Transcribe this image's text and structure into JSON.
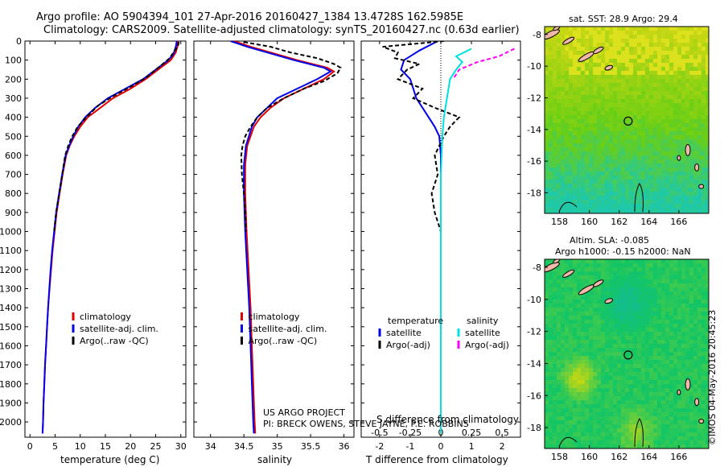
{
  "header": {
    "line1": "Argo profile: AO 5904394_101 27-Apr-2016 20160427_1384 13.4728S 162.5985E",
    "line2": "Climatology: CARS2009. Satellite-adjusted climatology: synTS_20160427.nc (0.63d earlier)"
  },
  "footer": {
    "project": "US ARGO PROJECT",
    "pi": "PI: BRECK OWENS, STEVE JAYNE, P.E. ROBBINS"
  },
  "side_stamp": "©IMOS 04-May-2016 20:45:23",
  "colors": {
    "climatology": "#e00000",
    "satellite": "#0000ee",
    "argo": "#000000",
    "sal_satellite": "#00e0e0",
    "sal_argo": "#ff00ff"
  },
  "chart_data": [
    {
      "type": "line",
      "panel": "temperature",
      "xlabel": "temperature (deg C)",
      "ylabel": "",
      "xlim": [
        -1,
        31
      ],
      "ylim": [
        2080,
        0
      ],
      "xticks": [
        0,
        5,
        10,
        15,
        20,
        25,
        30
      ],
      "yticks": [
        0,
        100,
        200,
        300,
        400,
        500,
        600,
        700,
        800,
        900,
        1000,
        1100,
        1200,
        1300,
        1400,
        1500,
        1600,
        1700,
        1800,
        1900,
        2000
      ],
      "legend": [
        "climatology",
        "satellite-adj. clim.",
        "Argo(..raw -QC)"
      ],
      "legend_position": "lower-center",
      "series": [
        {
          "name": "climatology",
          "style": "solid",
          "points": [
            [
              29.5,
              0
            ],
            [
              29.3,
              30
            ],
            [
              29.0,
              60
            ],
            [
              28.0,
              100
            ],
            [
              25.5,
              150
            ],
            [
              23.0,
              200
            ],
            [
              20.0,
              250
            ],
            [
              16.5,
              300
            ],
            [
              14.0,
              350
            ],
            [
              11.5,
              400
            ],
            [
              10.0,
              450
            ],
            [
              8.8,
              500
            ],
            [
              7.9,
              550
            ],
            [
              7.2,
              600
            ],
            [
              6.5,
              700
            ],
            [
              5.9,
              800
            ],
            [
              5.3,
              900
            ],
            [
              4.9,
              1000
            ],
            [
              4.5,
              1100
            ],
            [
              4.2,
              1200
            ],
            [
              3.9,
              1300
            ],
            [
              3.6,
              1400
            ],
            [
              3.4,
              1500
            ],
            [
              3.2,
              1600
            ],
            [
              3.0,
              1700
            ],
            [
              2.85,
              1800
            ],
            [
              2.7,
              1900
            ],
            [
              2.6,
              2000
            ],
            [
              2.5,
              2060
            ]
          ]
        },
        {
          "name": "satellite-adj. clim.",
          "style": "solid",
          "points": [
            [
              29.2,
              0
            ],
            [
              29.0,
              30
            ],
            [
              28.5,
              70
            ],
            [
              27.5,
              100
            ],
            [
              25.0,
              150
            ],
            [
              22.5,
              200
            ],
            [
              19.0,
              250
            ],
            [
              15.5,
              300
            ],
            [
              13.0,
              350
            ],
            [
              11.0,
              400
            ],
            [
              9.6,
              450
            ],
            [
              8.6,
              500
            ],
            [
              7.8,
              550
            ],
            [
              7.1,
              600
            ],
            [
              6.4,
              700
            ],
            [
              5.8,
              800
            ],
            [
              5.2,
              900
            ],
            [
              4.8,
              1000
            ],
            [
              4.4,
              1100
            ],
            [
              4.1,
              1200
            ],
            [
              3.85,
              1300
            ],
            [
              3.6,
              1400
            ],
            [
              3.4,
              1500
            ],
            [
              3.2,
              1600
            ],
            [
              3.0,
              1700
            ],
            [
              2.85,
              1800
            ],
            [
              2.7,
              1900
            ],
            [
              2.6,
              2000
            ],
            [
              2.5,
              2060
            ]
          ]
        },
        {
          "name": "Argo(..raw -QC)",
          "style": "dashed",
          "points": [
            [
              29.6,
              5
            ],
            [
              29.4,
              30
            ],
            [
              28.5,
              60
            ],
            [
              27.8,
              90
            ],
            [
              25.5,
              140
            ],
            [
              23.2,
              190
            ],
            [
              20.0,
              240
            ],
            [
              16.5,
              290
            ],
            [
              13.5,
              340
            ],
            [
              11.2,
              400
            ],
            [
              9.5,
              450
            ],
            [
              8.4,
              500
            ],
            [
              7.6,
              550
            ],
            [
              7.0,
              600
            ],
            [
              6.4,
              700
            ],
            [
              5.8,
              800
            ],
            [
              5.2,
              900
            ],
            [
              4.8,
              1000
            ]
          ]
        }
      ]
    },
    {
      "type": "line",
      "panel": "salinity",
      "xlabel": "salinity",
      "xlim": [
        33.75,
        36.15
      ],
      "ylim": [
        2080,
        0
      ],
      "xticks": [
        34,
        34.5,
        35,
        35.5,
        36
      ],
      "legend": [
        "climatology",
        "satellite-adj. clim.",
        "Argo(..raw -QC)"
      ],
      "legend_position": "lower-center",
      "series": [
        {
          "name": "climatology",
          "style": "solid",
          "points": [
            [
              34.35,
              0
            ],
            [
              34.6,
              30
            ],
            [
              34.9,
              60
            ],
            [
              35.3,
              100
            ],
            [
              35.75,
              140
            ],
            [
              35.85,
              160
            ],
            [
              35.7,
              200
            ],
            [
              35.4,
              250
            ],
            [
              35.1,
              300
            ],
            [
              34.9,
              350
            ],
            [
              34.75,
              400
            ],
            [
              34.65,
              450
            ],
            [
              34.55,
              550
            ],
            [
              34.52,
              650
            ],
            [
              34.52,
              800
            ],
            [
              34.54,
              1000
            ],
            [
              34.57,
              1200
            ],
            [
              34.6,
              1400
            ],
            [
              34.62,
              1600
            ],
            [
              34.64,
              1800
            ],
            [
              34.66,
              2000
            ],
            [
              34.67,
              2060
            ]
          ]
        },
        {
          "name": "satellite-adj. clim.",
          "style": "solid",
          "points": [
            [
              34.3,
              0
            ],
            [
              34.55,
              30
            ],
            [
              34.85,
              60
            ],
            [
              35.25,
              100
            ],
            [
              35.7,
              140
            ],
            [
              35.8,
              160
            ],
            [
              35.6,
              200
            ],
            [
              35.3,
              250
            ],
            [
              35.0,
              300
            ],
            [
              34.85,
              350
            ],
            [
              34.7,
              400
            ],
            [
              34.62,
              450
            ],
            [
              34.53,
              550
            ],
            [
              34.5,
              650
            ],
            [
              34.5,
              800
            ],
            [
              34.52,
              1000
            ],
            [
              34.55,
              1200
            ],
            [
              34.58,
              1400
            ],
            [
              34.6,
              1600
            ],
            [
              34.62,
              1800
            ],
            [
              34.64,
              2000
            ],
            [
              34.65,
              2060
            ]
          ]
        },
        {
          "name": "Argo(..raw -QC)",
          "style": "dashed",
          "points": [
            [
              34.5,
              5
            ],
            [
              34.9,
              30
            ],
            [
              35.2,
              60
            ],
            [
              35.6,
              90
            ],
            [
              35.85,
              120
            ],
            [
              35.95,
              140
            ],
            [
              35.9,
              170
            ],
            [
              35.7,
              210
            ],
            [
              35.4,
              250
            ],
            [
              35.1,
              300
            ],
            [
              34.85,
              350
            ],
            [
              34.7,
              400
            ],
            [
              34.6,
              450
            ],
            [
              34.52,
              500
            ],
            [
              34.48,
              550
            ],
            [
              34.46,
              600
            ],
            [
              34.47,
              700
            ],
            [
              34.5,
              800
            ],
            [
              34.52,
              900
            ],
            [
              34.53,
              1000
            ]
          ]
        }
      ]
    },
    {
      "type": "line",
      "panel": "difference",
      "xlabel": "T difference from climatology",
      "top_axis_label": "S difference from climatology",
      "xlim": [
        -2.6,
        2.6
      ],
      "ylim": [
        2080,
        0
      ],
      "xticks": [
        -2,
        -1,
        0,
        1,
        2
      ],
      "top_xticks": [
        "-0.5",
        "-0.25",
        "0",
        "0.25",
        "0.5"
      ],
      "legend_groups": [
        {
          "title": "temperature",
          "items": [
            "satellite",
            "Argo(-adj)"
          ]
        },
        {
          "title": "salinity",
          "items": [
            "satellite",
            "Argo(-adj)"
          ]
        }
      ],
      "series": [
        {
          "name": "satellite",
          "group": "temperature",
          "style": "solid",
          "points": [
            [
              -0.1,
              0
            ],
            [
              -0.7,
              50
            ],
            [
              -1.2,
              100
            ],
            [
              -1.3,
              150
            ],
            [
              -1.0,
              200
            ],
            [
              -0.9,
              250
            ],
            [
              -0.8,
              300
            ],
            [
              -0.6,
              350
            ],
            [
              -0.4,
              400
            ],
            [
              -0.2,
              450
            ],
            [
              -0.05,
              500
            ],
            [
              0,
              600
            ],
            [
              0,
              2060
            ]
          ]
        },
        {
          "name": "Argo(-adj)",
          "group": "temperature",
          "style": "dashed",
          "points": [
            [
              0.1,
              0
            ],
            [
              -1.9,
              30
            ],
            [
              -1.4,
              60
            ],
            [
              -1.5,
              90
            ],
            [
              -0.7,
              120
            ],
            [
              -1.1,
              150
            ],
            [
              -1.4,
              200
            ],
            [
              -0.6,
              250
            ],
            [
              -0.9,
              300
            ],
            [
              -0.2,
              350
            ],
            [
              0.6,
              400
            ],
            [
              0.3,
              450
            ],
            [
              0.1,
              500
            ],
            [
              -0.2,
              600
            ],
            [
              -0.1,
              700
            ],
            [
              -0.3,
              800
            ],
            [
              -0.2,
              900
            ],
            [
              0,
              1000
            ]
          ]
        },
        {
          "name": "satellite",
          "group": "salinity",
          "style": "solid",
          "points": [
            [
              1.0,
              40
            ],
            [
              0.5,
              80
            ],
            [
              0.7,
              110
            ],
            [
              0.5,
              150
            ],
            [
              0.3,
              200
            ],
            [
              0.2,
              300
            ],
            [
              0.1,
              400
            ],
            [
              0.05,
              500
            ],
            [
              0,
              700
            ],
            [
              0,
              2060
            ]
          ]
        },
        {
          "name": "Argo(-adj)",
          "group": "salinity",
          "style": "dashed",
          "points": [
            [
              2.4,
              40
            ],
            [
              1.9,
              80
            ],
            [
              1.2,
              110
            ],
            [
              0.6,
              150
            ],
            [
              0.4,
              200
            ]
          ]
        }
      ]
    },
    {
      "type": "heatmap",
      "panel": "map-sst",
      "title": "sat. SST: 28.9 Argo: 29.4",
      "xticks": [
        "158",
        "160",
        "162",
        "164",
        "166"
      ],
      "yticks": [
        "-8",
        "-10",
        "-12",
        "-14",
        "-16",
        "-18"
      ],
      "xlim": [
        157,
        168
      ],
      "ylim": [
        -19.3,
        -7.5
      ],
      "marker": [
        162.6,
        -13.47
      ]
    },
    {
      "type": "heatmap",
      "panel": "map-sla",
      "title_line1": "Altim. SLA: -0.085",
      "title_line2": "Argo h1000: -0.15 h2000: NaN",
      "xticks": [
        "158",
        "160",
        "162",
        "164",
        "166"
      ],
      "yticks": [
        "-8",
        "-10",
        "-12",
        "-14",
        "-16",
        "-18"
      ],
      "xlim": [
        157,
        168
      ],
      "ylim": [
        -19.3,
        -7.5
      ],
      "marker": [
        162.6,
        -13.47
      ]
    }
  ]
}
